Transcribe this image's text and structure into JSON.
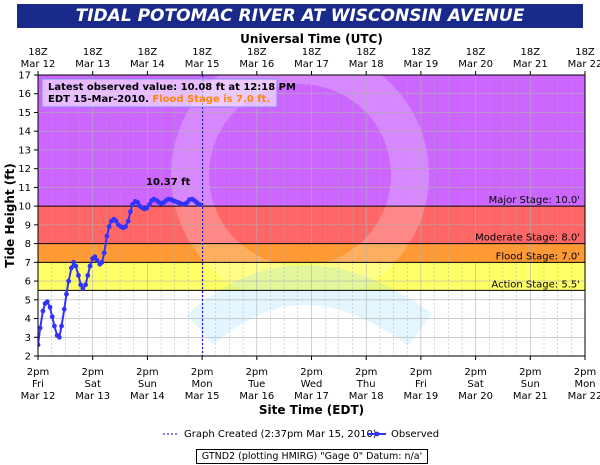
{
  "title": "TIDAL POTOMAC RIVER  AT WISCONSIN AVENUE",
  "footer_text": "GTND2 (plotting HMIRG)  \"Gage 0\" Datum: n/a'",
  "colors": {
    "title_bg": "#1a2a8a",
    "major": "#cc66ff",
    "moderate": "#ff6666",
    "flood": "#ff9933",
    "action": "#ffff66",
    "observed": "#3333ff"
  },
  "chart_data": {
    "type": "line",
    "title": "TIDAL POTOMAC RIVER  AT WISCONSIN AVENUE",
    "xlabel": "Site Time (EDT)",
    "x2label": "Universal Time (UTC)",
    "ylabel": "Tide Height (ft)",
    "ylim": [
      2,
      17
    ],
    "y_ticks": [
      2,
      3,
      4,
      5,
      6,
      7,
      8,
      9,
      10,
      11,
      12,
      13,
      14,
      15,
      16,
      17
    ],
    "x_days": [
      "Mar 12",
      "Mar 13",
      "Mar 14",
      "Mar 15",
      "Mar 16",
      "Mar 17",
      "Mar 18",
      "Mar 19",
      "Mar 20",
      "Mar 21",
      "Mar 22"
    ],
    "x_bottom_ticks": [
      {
        "time": "2pm",
        "day": "Fri",
        "date": "Mar 12"
      },
      {
        "time": "2pm",
        "day": "Sat",
        "date": "Mar 13"
      },
      {
        "time": "2pm",
        "day": "Sun",
        "date": "Mar 14"
      },
      {
        "time": "2pm",
        "day": "Mon",
        "date": "Mar 15"
      },
      {
        "time": "2pm",
        "day": "Tue",
        "date": "Mar 16"
      },
      {
        "time": "2pm",
        "day": "Wed",
        "date": "Mar 17"
      },
      {
        "time": "2pm",
        "day": "Thu",
        "date": "Mar 18"
      },
      {
        "time": "2pm",
        "day": "Fri",
        "date": "Mar 19"
      },
      {
        "time": "2pm",
        "day": "Sat",
        "date": "Mar 20"
      },
      {
        "time": "2pm",
        "day": "Sun",
        "date": "Mar 21"
      },
      {
        "time": "2pm",
        "day": "Mon",
        "date": "Mar 22"
      }
    ],
    "x_top_ticks": [
      {
        "time": "18Z",
        "date": "Mar 12"
      },
      {
        "time": "18Z",
        "date": "Mar 13"
      },
      {
        "time": "18Z",
        "date": "Mar 14"
      },
      {
        "time": "18Z",
        "date": "Mar 15"
      },
      {
        "time": "18Z",
        "date": "Mar 16"
      },
      {
        "time": "18Z",
        "date": "Mar 17"
      },
      {
        "time": "18Z",
        "date": "Mar 18"
      },
      {
        "time": "18Z",
        "date": "Mar 19"
      },
      {
        "time": "18Z",
        "date": "Mar 20"
      },
      {
        "time": "18Z",
        "date": "Mar 21"
      },
      {
        "time": "18Z",
        "date": "Mar 22"
      }
    ],
    "stages": [
      {
        "name": "Action Stage",
        "label": "Action Stage: 5.5'",
        "value": 5.5
      },
      {
        "name": "Flood Stage",
        "label": "Flood Stage: 7.0'",
        "value": 7.0
      },
      {
        "name": "Moderate Stage",
        "label": "Moderate Stage: 8.0'",
        "value": 8.0
      },
      {
        "name": "Major Stage",
        "label": "Major Stage: 10.0'",
        "value": 10.0
      }
    ],
    "graph_created_day": 3.01,
    "annotation_box": {
      "line1": "Latest observed value: 10.08 ft at 12:18 PM",
      "line2_prefix": "EDT 15-Mar-2010. ",
      "line2_highlight": "Flood Stage is 7.0 ft."
    },
    "peak_label": "10.37 ft",
    "peak_label_day": 2.38,
    "peak_label_value": 10.37,
    "legend": {
      "graph_created": "Graph Created (2:37pm Mar 15, 2010)",
      "observed": "Observed"
    },
    "series": [
      {
        "name": "Observed",
        "x_days": [
          0.0,
          0.04,
          0.09,
          0.13,
          0.17,
          0.22,
          0.26,
          0.3,
          0.35,
          0.39,
          0.43,
          0.48,
          0.52,
          0.56,
          0.61,
          0.65,
          0.69,
          0.74,
          0.78,
          0.82,
          0.87,
          0.91,
          0.95,
          1.0,
          1.04,
          1.08,
          1.13,
          1.17,
          1.21,
          1.26,
          1.3,
          1.34,
          1.39,
          1.43,
          1.47,
          1.52,
          1.56,
          1.6,
          1.65,
          1.69,
          1.73,
          1.78,
          1.82,
          1.86,
          1.91,
          1.95,
          1.99,
          2.04,
          2.08,
          2.12,
          2.17,
          2.21,
          2.25,
          2.3,
          2.34,
          2.38,
          2.43,
          2.47,
          2.51,
          2.56,
          2.6,
          2.64,
          2.69,
          2.73,
          2.77,
          2.82,
          2.86,
          2.9,
          2.93,
          2.96
        ],
        "values": [
          2.6,
          3.5,
          4.4,
          4.8,
          4.9,
          4.6,
          4.1,
          3.6,
          3.1,
          3.0,
          3.6,
          4.5,
          5.3,
          6.0,
          6.7,
          7.0,
          6.8,
          6.3,
          5.8,
          5.6,
          5.8,
          6.3,
          6.8,
          7.2,
          7.3,
          7.1,
          6.9,
          7.0,
          7.5,
          8.4,
          8.9,
          9.2,
          9.3,
          9.2,
          9.0,
          8.9,
          8.85,
          8.9,
          9.2,
          9.7,
          10.1,
          10.25,
          10.2,
          10.0,
          9.9,
          9.85,
          9.9,
          10.1,
          10.3,
          10.37,
          10.3,
          10.2,
          10.15,
          10.2,
          10.3,
          10.37,
          10.35,
          10.3,
          10.25,
          10.2,
          10.15,
          10.1,
          10.12,
          10.2,
          10.35,
          10.37,
          10.3,
          10.2,
          10.1,
          10.08
        ]
      }
    ]
  }
}
